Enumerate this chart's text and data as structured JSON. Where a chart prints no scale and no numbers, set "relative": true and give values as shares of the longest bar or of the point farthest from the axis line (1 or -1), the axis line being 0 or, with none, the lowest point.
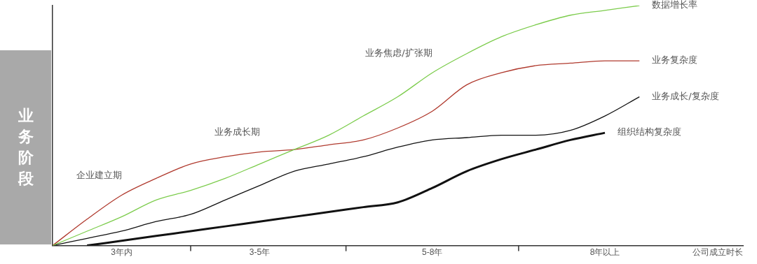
{
  "chart_data": {
    "type": "line",
    "relative": true,
    "ylabel": "业务阶段",
    "xlabel": "公司成立时长",
    "categories": [
      null,
      null,
      "3年内",
      null,
      null,
      null,
      "3-5年",
      null,
      null,
      null,
      null,
      "5-8年",
      null,
      null,
      null,
      null,
      "8年以上",
      null,
      null,
      null,
      null
    ],
    "grid": false,
    "legend": false,
    "marker": "none",
    "line_style": "solid",
    "series": [
      {
        "name": "数据增长率",
        "color": "#7ccc4c",
        "values": [
          0.0,
          0.06,
          0.12,
          0.19,
          0.23,
          0.28,
          0.34,
          0.4,
          0.46,
          0.54,
          0.62,
          0.72,
          0.8,
          0.87,
          0.92,
          0.96,
          0.98,
          1.0,
          null,
          null,
          null
        ]
      },
      {
        "name": "业务复杂度",
        "color": "#b03a2e",
        "values": [
          0.0,
          0.11,
          0.21,
          0.28,
          0.34,
          0.37,
          0.39,
          0.4,
          0.42,
          0.44,
          0.49,
          0.56,
          0.67,
          0.72,
          0.75,
          0.76,
          0.77,
          0.77,
          null,
          null,
          null
        ]
      },
      {
        "name": "业务成长/复杂度",
        "color": "#111111",
        "values": [
          0.0,
          0.03,
          0.06,
          0.1,
          0.13,
          0.19,
          0.25,
          0.31,
          0.34,
          0.37,
          0.41,
          0.44,
          0.45,
          0.46,
          0.46,
          0.48,
          0.54,
          0.62,
          null,
          null,
          null
        ]
      },
      {
        "name": "组织结构复杂度",
        "color": "#111111",
        "values": [
          null,
          0.0,
          0.02,
          0.04,
          0.06,
          0.08,
          0.1,
          0.12,
          0.14,
          0.16,
          0.18,
          0.24,
          0.31,
          0.36,
          0.4,
          0.44,
          0.47,
          null,
          null,
          null,
          null
        ]
      }
    ],
    "annotations": [
      "企业建立期",
      "业务成长期",
      "业务焦虑/扩张期"
    ]
  }
}
